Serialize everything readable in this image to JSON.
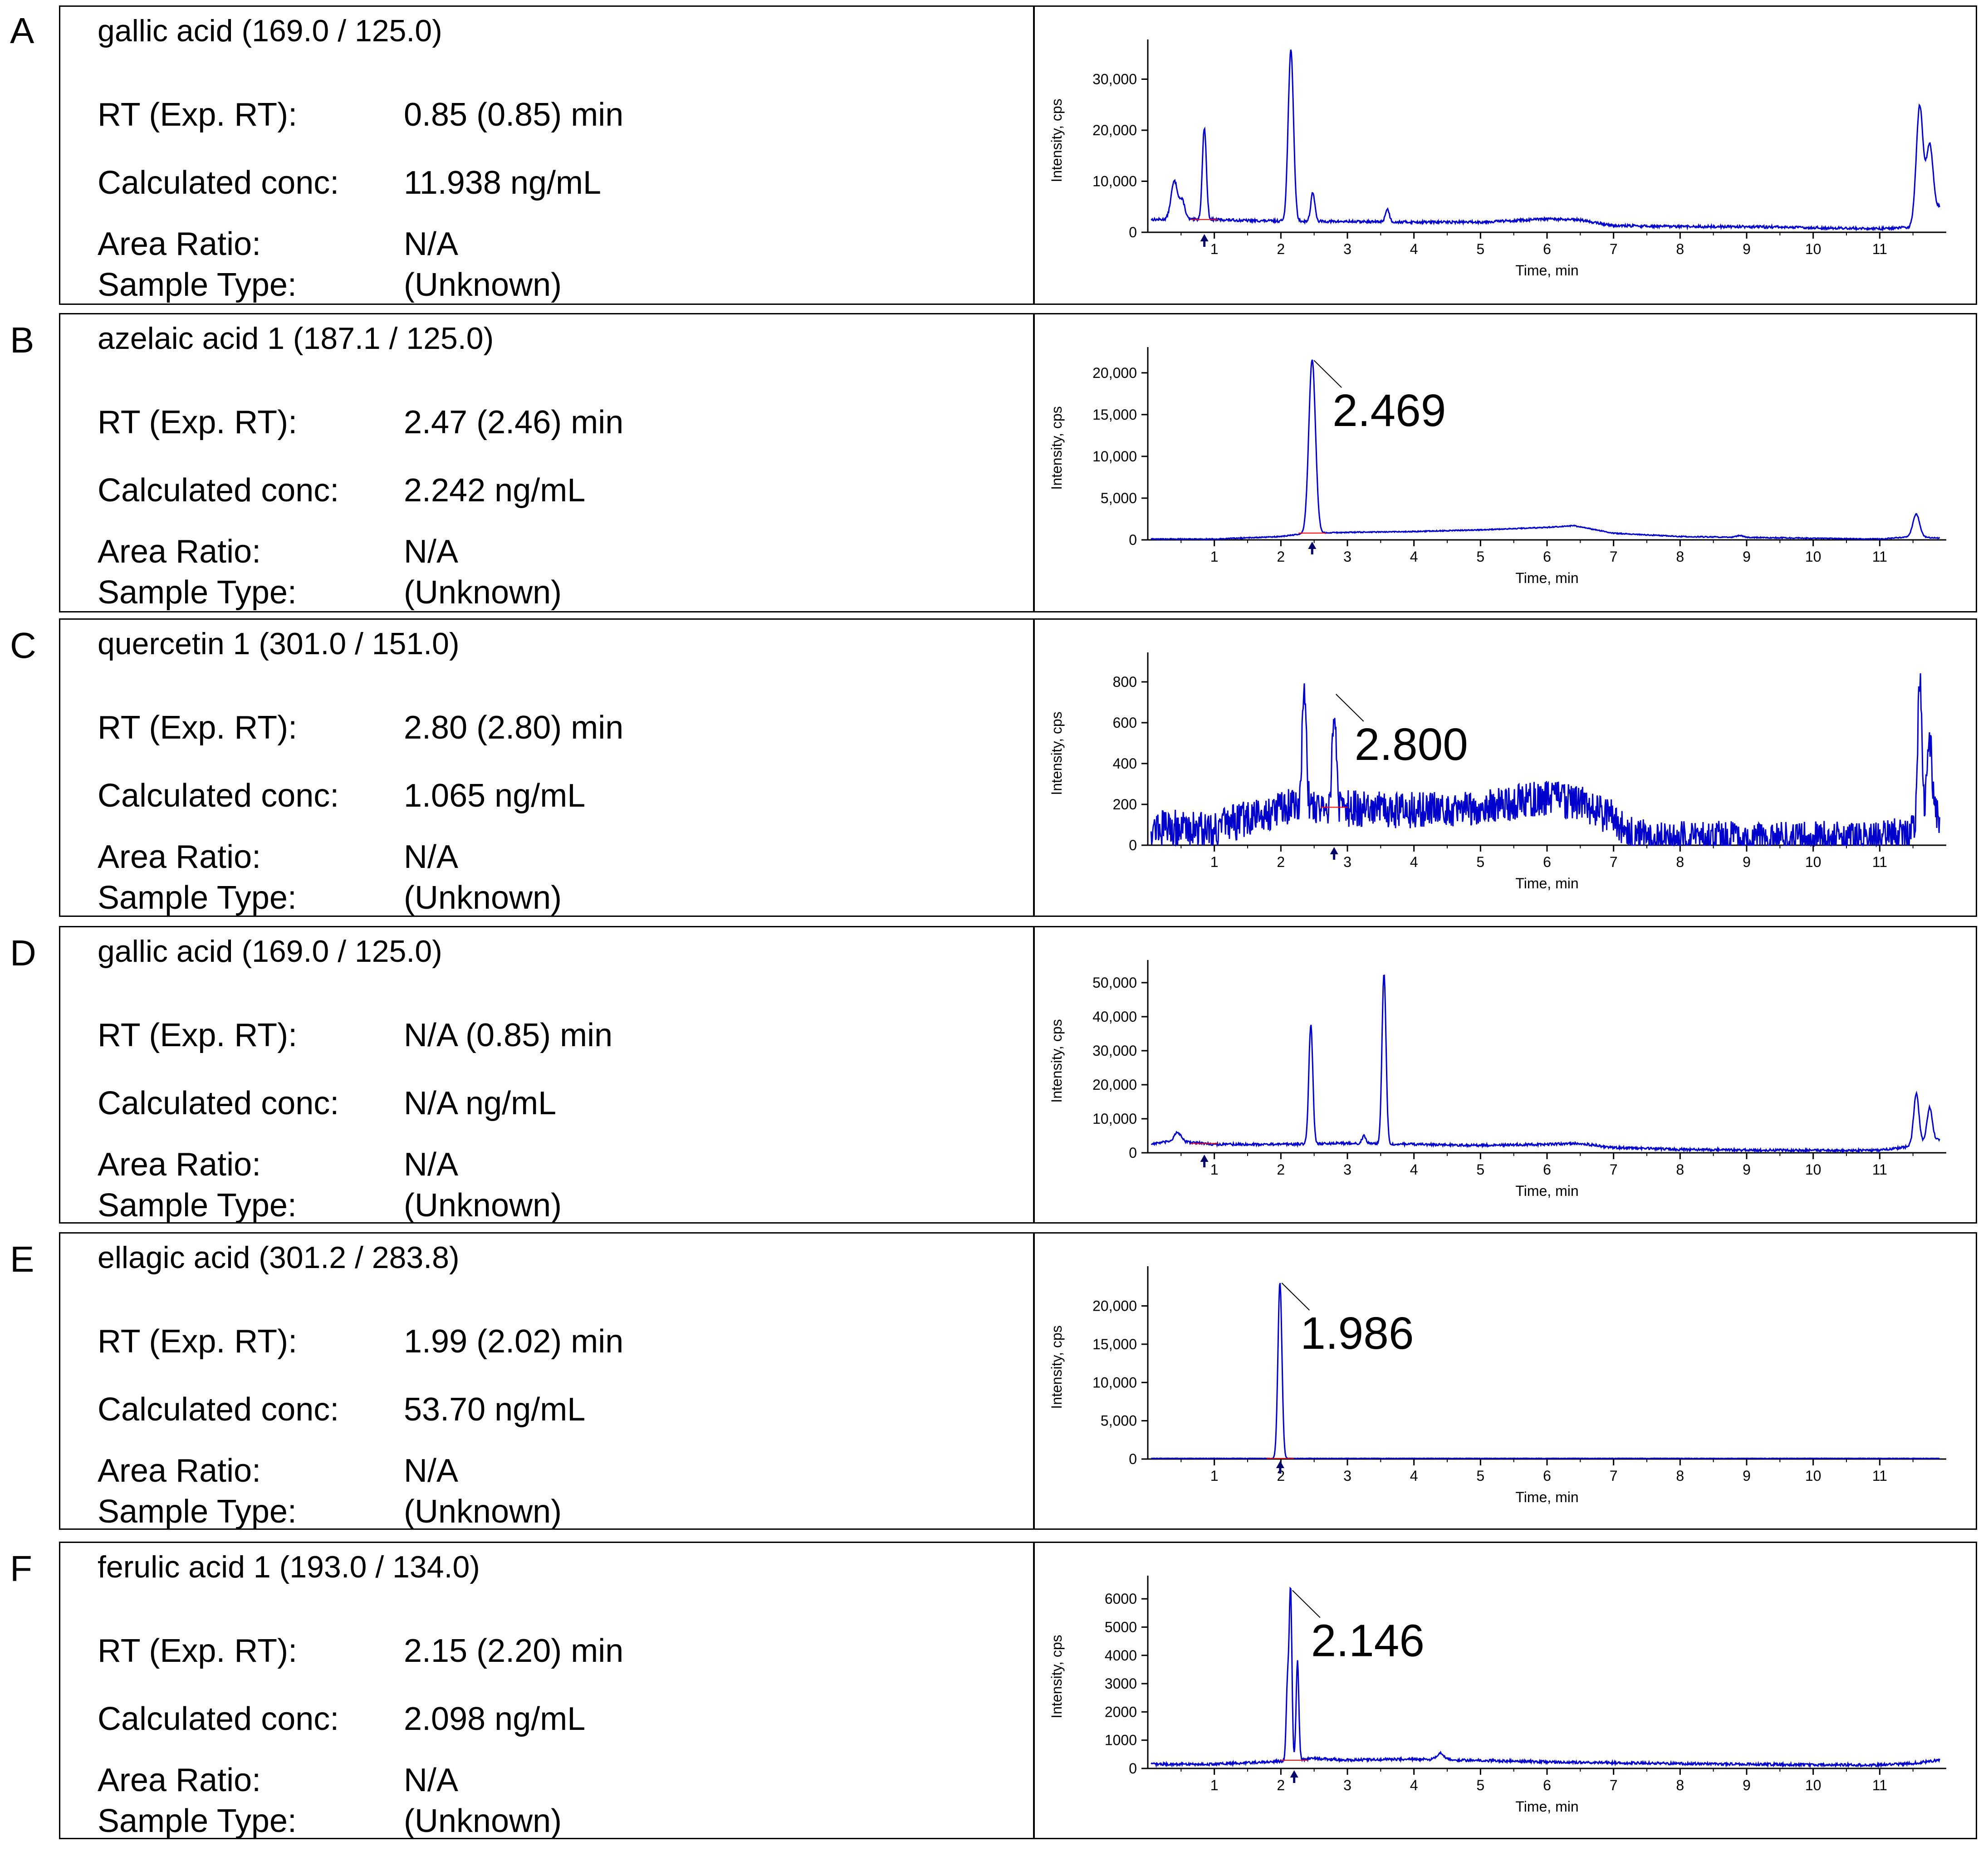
{
  "panels": [
    {
      "letter": "A",
      "compound": "gallic acid (169.0 / 125.0)",
      "rows": [
        {
          "label": "RT (Exp. RT):",
          "value": "0.85 (0.85) min"
        },
        {
          "label": "Calculated conc:",
          "value": "11.938 ng/mL"
        },
        {
          "label": "Area Ratio:",
          "value": "N/A"
        },
        {
          "label": "Sample Type:",
          "value": "(Unknown)"
        }
      ]
    },
    {
      "letter": "B",
      "compound": "azelaic acid 1 (187.1 / 125.0)",
      "rows": [
        {
          "label": "RT (Exp. RT):",
          "value": "2.47 (2.46) min"
        },
        {
          "label": "Calculated conc:",
          "value": "2.242 ng/mL"
        },
        {
          "label": "Area Ratio:",
          "value": "N/A"
        },
        {
          "label": "Sample Type:",
          "value": "(Unknown)"
        }
      ]
    },
    {
      "letter": "C",
      "compound": "quercetin 1 (301.0 / 151.0)",
      "rows": [
        {
          "label": "RT (Exp. RT):",
          "value": "2.80 (2.80) min"
        },
        {
          "label": "Calculated conc:",
          "value": "1.065 ng/mL"
        },
        {
          "label": "Area Ratio:",
          "value": "N/A"
        },
        {
          "label": "Sample Type:",
          "value": "(Unknown)"
        }
      ]
    },
    {
      "letter": "D",
      "compound": "gallic acid (169.0 / 125.0)",
      "rows": [
        {
          "label": "RT (Exp. RT):",
          "value": "N/A (0.85) min"
        },
        {
          "label": "Calculated conc:",
          "value": "N/A ng/mL"
        },
        {
          "label": "Area Ratio:",
          "value": "N/A"
        },
        {
          "label": "Sample Type:",
          "value": "(Unknown)"
        }
      ]
    },
    {
      "letter": "E",
      "compound": "ellagic acid (301.2 / 283.8)",
      "rows": [
        {
          "label": "RT (Exp. RT):",
          "value": "1.99 (2.02) min"
        },
        {
          "label": "Calculated conc:",
          "value": "53.70 ng/mL"
        },
        {
          "label": "Area Ratio:",
          "value": "N/A"
        },
        {
          "label": "Sample Type:",
          "value": "(Unknown)"
        }
      ]
    },
    {
      "letter": "F",
      "compound": "ferulic acid 1 (193.0 / 134.0)",
      "rows": [
        {
          "label": "RT (Exp. RT):",
          "value": "2.15 (2.20) min"
        },
        {
          "label": "Calculated conc:",
          "value": "2.098 ng/mL"
        },
        {
          "label": "Area Ratio:",
          "value": "N/A"
        },
        {
          "label": "Sample Type:",
          "value": "(Unknown)"
        }
      ]
    }
  ],
  "colors": {
    "trace": "#0000cc",
    "peak_fill": "#ff0000",
    "marker": "#000066"
  },
  "chart_data": [
    {
      "type": "line",
      "panel": "A",
      "xlabel": "Time, min",
      "ylabel": "Intensity, cps",
      "xlim": [
        0,
        12
      ],
      "ylim": [
        0,
        36000
      ],
      "xticks": [
        1,
        2,
        3,
        4,
        5,
        6,
        7,
        8,
        9,
        10,
        11
      ],
      "yticks": [
        0,
        10000,
        20000,
        30000
      ],
      "ytick_labels": [
        "0",
        "10,000",
        "20,000",
        "30,000"
      ],
      "marker_x": 0.85,
      "peak_label": null,
      "baseline": [
        [
          0,
          2500
        ],
        [
          0.3,
          2500
        ],
        [
          1,
          2500
        ],
        [
          1.5,
          2300
        ],
        [
          2,
          2200
        ],
        [
          3,
          2100
        ],
        [
          4,
          2000
        ],
        [
          5,
          2000
        ],
        [
          6,
          2600
        ],
        [
          6.5,
          2400
        ],
        [
          7,
          1300
        ],
        [
          8,
          1100
        ],
        [
          9,
          1100
        ],
        [
          10,
          900
        ],
        [
          11,
          700
        ],
        [
          11.45,
          1000
        ],
        [
          11.9,
          5000
        ]
      ],
      "peaks": [
        [
          0.4,
          7500,
          0.05
        ],
        [
          0.52,
          3500,
          0.04
        ],
        [
          0.85,
          18000,
          0.03
        ],
        [
          2.15,
          33500,
          0.04
        ],
        [
          2.48,
          5700,
          0.03
        ],
        [
          3.6,
          2500,
          0.03
        ],
        [
          11.6,
          22500,
          0.05
        ],
        [
          11.75,
          13500,
          0.05
        ]
      ],
      "noise": 250
    },
    {
      "type": "line",
      "panel": "B",
      "xlabel": "Time, min",
      "ylabel": "Intensity, cps",
      "xlim": [
        0,
        12
      ],
      "ylim": [
        0,
        22000
      ],
      "xticks": [
        1,
        2,
        3,
        4,
        5,
        6,
        7,
        8,
        9,
        10,
        11
      ],
      "yticks": [
        0,
        5000,
        10000,
        15000,
        20000
      ],
      "ytick_labels": [
        "0",
        "5,000",
        "10,000",
        "15,000",
        "20,000"
      ],
      "marker_x": 2.47,
      "peak_label": "2.469",
      "peak_label_x": 2.469,
      "peak_label_y": 21500,
      "baseline": [
        [
          0,
          100
        ],
        [
          1,
          100
        ],
        [
          2,
          400
        ],
        [
          2.4,
          800
        ],
        [
          3,
          900
        ],
        [
          4,
          1000
        ],
        [
          5,
          1200
        ],
        [
          6,
          1500
        ],
        [
          6.4,
          1700
        ],
        [
          7,
          800
        ],
        [
          8,
          400
        ],
        [
          9,
          300
        ],
        [
          10,
          200
        ],
        [
          11,
          100
        ],
        [
          11.5,
          400
        ],
        [
          11.9,
          200
        ]
      ],
      "peaks": [
        [
          2.47,
          20800,
          0.05
        ],
        [
          11.55,
          2700,
          0.05
        ],
        [
          8.9,
          200,
          0.05
        ]
      ],
      "noise": 60
    },
    {
      "type": "line",
      "panel": "C",
      "xlabel": "Time, min",
      "ylabel": "Intensity, cps",
      "xlim": [
        0,
        12
      ],
      "ylim": [
        0,
        900
      ],
      "xticks": [
        1,
        2,
        3,
        4,
        5,
        6,
        7,
        8,
        9,
        10,
        11
      ],
      "yticks": [
        0,
        200,
        400,
        600,
        800
      ],
      "ytick_labels": [
        "0",
        "200",
        "400",
        "600",
        "800"
      ],
      "marker_x": 2.8,
      "peak_label": "2.800",
      "peak_label_x": 2.8,
      "peak_label_y": 740,
      "baseline": [
        [
          0,
          90
        ],
        [
          1,
          80
        ],
        [
          1.5,
          130
        ],
        [
          2,
          180
        ],
        [
          2.3,
          200
        ],
        [
          3,
          180
        ],
        [
          4,
          170
        ],
        [
          5,
          190
        ],
        [
          6,
          230
        ],
        [
          6.5,
          210
        ],
        [
          7,
          130
        ],
        [
          7.3,
          40
        ],
        [
          8,
          30
        ],
        [
          9,
          30
        ],
        [
          10,
          30
        ],
        [
          11,
          30
        ],
        [
          11.5,
          60
        ],
        [
          11.9,
          150
        ]
      ],
      "peaks": [
        [
          2.35,
          600,
          0.03
        ],
        [
          2.8,
          480,
          0.03
        ],
        [
          11.6,
          750,
          0.03
        ],
        [
          11.75,
          380,
          0.04
        ]
      ],
      "noise": 90
    },
    {
      "type": "line",
      "panel": "D",
      "xlabel": "Time, min",
      "ylabel": "Intensity, cps",
      "xlim": [
        0,
        12
      ],
      "ylim": [
        0,
        54000
      ],
      "xticks": [
        1,
        2,
        3,
        4,
        5,
        6,
        7,
        8,
        9,
        10,
        11
      ],
      "yticks": [
        0,
        10000,
        20000,
        30000,
        40000,
        50000
      ],
      "ytick_labels": [
        "0",
        "10,000",
        "20,000",
        "30,000",
        "40,000",
        "50,000"
      ],
      "marker_x": 0.85,
      "peak_label": null,
      "baseline": [
        [
          0,
          2500
        ],
        [
          0.4,
          3500
        ],
        [
          1,
          2500
        ],
        [
          2,
          2500
        ],
        [
          3,
          2800
        ],
        [
          4,
          2500
        ],
        [
          5,
          2200
        ],
        [
          6,
          2500
        ],
        [
          6.5,
          2800
        ],
        [
          7,
          1500
        ],
        [
          8,
          1000
        ],
        [
          9,
          800
        ],
        [
          10,
          700
        ],
        [
          11,
          700
        ],
        [
          11.5,
          2000
        ],
        [
          11.9,
          4000
        ]
      ],
      "peaks": [
        [
          0.45,
          2500,
          0.05
        ],
        [
          2.45,
          35000,
          0.03
        ],
        [
          3.55,
          50000,
          0.03
        ],
        [
          3.25,
          2200,
          0.03
        ],
        [
          11.55,
          15000,
          0.04
        ],
        [
          11.75,
          10000,
          0.04
        ]
      ],
      "noise": 350
    },
    {
      "type": "line",
      "panel": "E",
      "xlabel": "Time, min",
      "ylabel": "Intensity, cps",
      "xlim": [
        0,
        12
      ],
      "ylim": [
        0,
        24000
      ],
      "xticks": [
        1,
        2,
        3,
        4,
        5,
        6,
        7,
        8,
        9,
        10,
        11
      ],
      "yticks": [
        0,
        5000,
        10000,
        15000,
        20000
      ],
      "ytick_labels": [
        "0",
        "5,000",
        "10,000",
        "15,000",
        "20,000"
      ],
      "marker_x": 1.99,
      "peak_label": "1.986",
      "peak_label_x": 1.986,
      "peak_label_y": 23000,
      "baseline": [
        [
          0,
          80
        ],
        [
          12,
          80
        ]
      ],
      "peaks": [
        [
          1.986,
          23000,
          0.03
        ]
      ],
      "noise": 30
    },
    {
      "type": "line",
      "panel": "F",
      "xlabel": "Time, min",
      "ylabel": "Intensity, cps",
      "xlim": [
        0,
        12
      ],
      "ylim": [
        0,
        6500
      ],
      "xticks": [
        1,
        2,
        3,
        4,
        5,
        6,
        7,
        8,
        9,
        10,
        11
      ],
      "yticks": [
        0,
        1000,
        2000,
        3000,
        4000,
        5000,
        6000
      ],
      "ytick_labels": [
        "0",
        "1000",
        "2000",
        "3000",
        "4000",
        "5000",
        "6000"
      ],
      "marker_x": 2.2,
      "peak_label": "2.146",
      "peak_label_x": 2.146,
      "peak_label_y": 6300,
      "baseline": [
        [
          0,
          150
        ],
        [
          1,
          150
        ],
        [
          2,
          250
        ],
        [
          2.5,
          350
        ],
        [
          3,
          300
        ],
        [
          4,
          330
        ],
        [
          5,
          280
        ],
        [
          6,
          230
        ],
        [
          7,
          200
        ],
        [
          8,
          170
        ],
        [
          9,
          150
        ],
        [
          10,
          130
        ],
        [
          11,
          120
        ],
        [
          11.5,
          180
        ],
        [
          11.9,
          300
        ]
      ],
      "peaks": [
        [
          2.1,
          2700,
          0.02
        ],
        [
          2.146,
          6000,
          0.02
        ],
        [
          2.25,
          3500,
          0.02
        ],
        [
          4.4,
          250,
          0.05
        ]
      ],
      "noise": 45
    }
  ]
}
